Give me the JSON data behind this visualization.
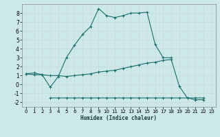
{
  "xlabel": "Humidex (Indice chaleur)",
  "bg_color": "#cce8e8",
  "grid_color": "#b0d0d0",
  "line_color": "#1a6e6a",
  "xlim": [
    -0.5,
    23.5
  ],
  "ylim": [
    -2.5,
    9.0
  ],
  "yticks": [
    -2,
    -1,
    0,
    1,
    2,
    3,
    4,
    5,
    6,
    7,
    8
  ],
  "xticks": [
    0,
    1,
    2,
    3,
    4,
    5,
    6,
    7,
    8,
    9,
    10,
    11,
    12,
    13,
    14,
    15,
    16,
    17,
    18,
    19,
    20,
    21,
    22,
    23
  ],
  "series": [
    {
      "x": [
        0,
        1,
        2,
        3,
        4,
        5,
        6,
        7,
        8,
        9,
        10,
        11,
        12,
        13,
        14,
        15,
        16,
        17,
        18
      ],
      "y": [
        1.2,
        1.3,
        1.1,
        -0.3,
        0.9,
        3.0,
        4.4,
        5.6,
        6.5,
        8.5,
        7.7,
        7.5,
        7.7,
        8.0,
        8.0,
        8.1,
        4.5,
        3.0,
        3.0
      ]
    },
    {
      "x": [
        0,
        1,
        2,
        3,
        4,
        5,
        6,
        7,
        8,
        9,
        10,
        11,
        12,
        13,
        14,
        15,
        16,
        17,
        18,
        19,
        20,
        21,
        22
      ],
      "y": [
        1.2,
        1.1,
        1.1,
        1.0,
        1.0,
        0.9,
        1.0,
        1.1,
        1.2,
        1.4,
        1.5,
        1.6,
        1.8,
        2.0,
        2.2,
        2.4,
        2.5,
        2.7,
        2.8,
        -0.2,
        -1.5,
        -1.5,
        -1.5
      ]
    },
    {
      "x": [
        3,
        4,
        5,
        6,
        7,
        8,
        9,
        10,
        11,
        12,
        13,
        14,
        15,
        16,
        17,
        18,
        19,
        20,
        21,
        22
      ],
      "y": [
        -1.5,
        -1.5,
        -1.5,
        -1.5,
        -1.5,
        -1.5,
        -1.5,
        -1.5,
        -1.5,
        -1.5,
        -1.5,
        -1.5,
        -1.5,
        -1.5,
        -1.5,
        -1.5,
        -1.5,
        -1.5,
        -1.7,
        -1.7
      ]
    }
  ]
}
